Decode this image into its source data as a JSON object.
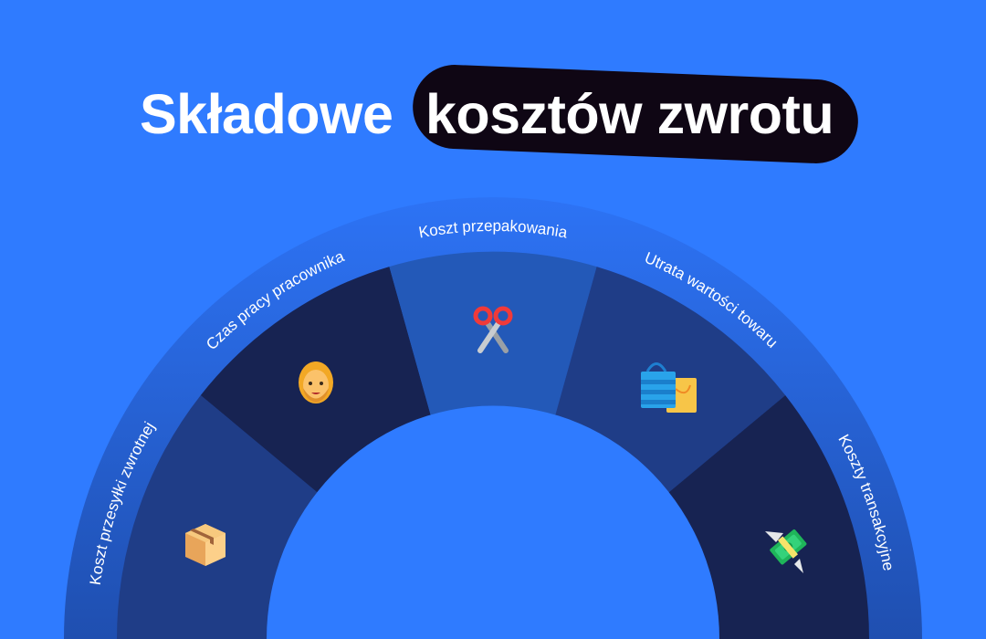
{
  "title": {
    "plain": "Składowe",
    "highlighted": "kosztów zwrotu"
  },
  "colors": {
    "background": "#2f7bff",
    "outer_band": "#2a6be6",
    "highlight_pill": "#0f0614",
    "segment_medium": "#1f3d87",
    "segment_dark": "#172352",
    "segment_light": "#2359b8"
  },
  "segments": [
    {
      "label": "Koszt przesyłki zwrotnej",
      "icon": "package-box-icon",
      "color": "#1f3d87"
    },
    {
      "label": "Czas pracy pracownika",
      "icon": "person-face-icon",
      "color": "#172352"
    },
    {
      "label": "Koszt przepakowania",
      "icon": "scissors-icon",
      "color": "#2359b8"
    },
    {
      "label": "Utrata wartości towaru",
      "icon": "shopping-bags-icon",
      "color": "#1f3d87"
    },
    {
      "label": "Koszty transakcyjne",
      "icon": "money-with-wings-icon",
      "color": "#172352"
    }
  ]
}
